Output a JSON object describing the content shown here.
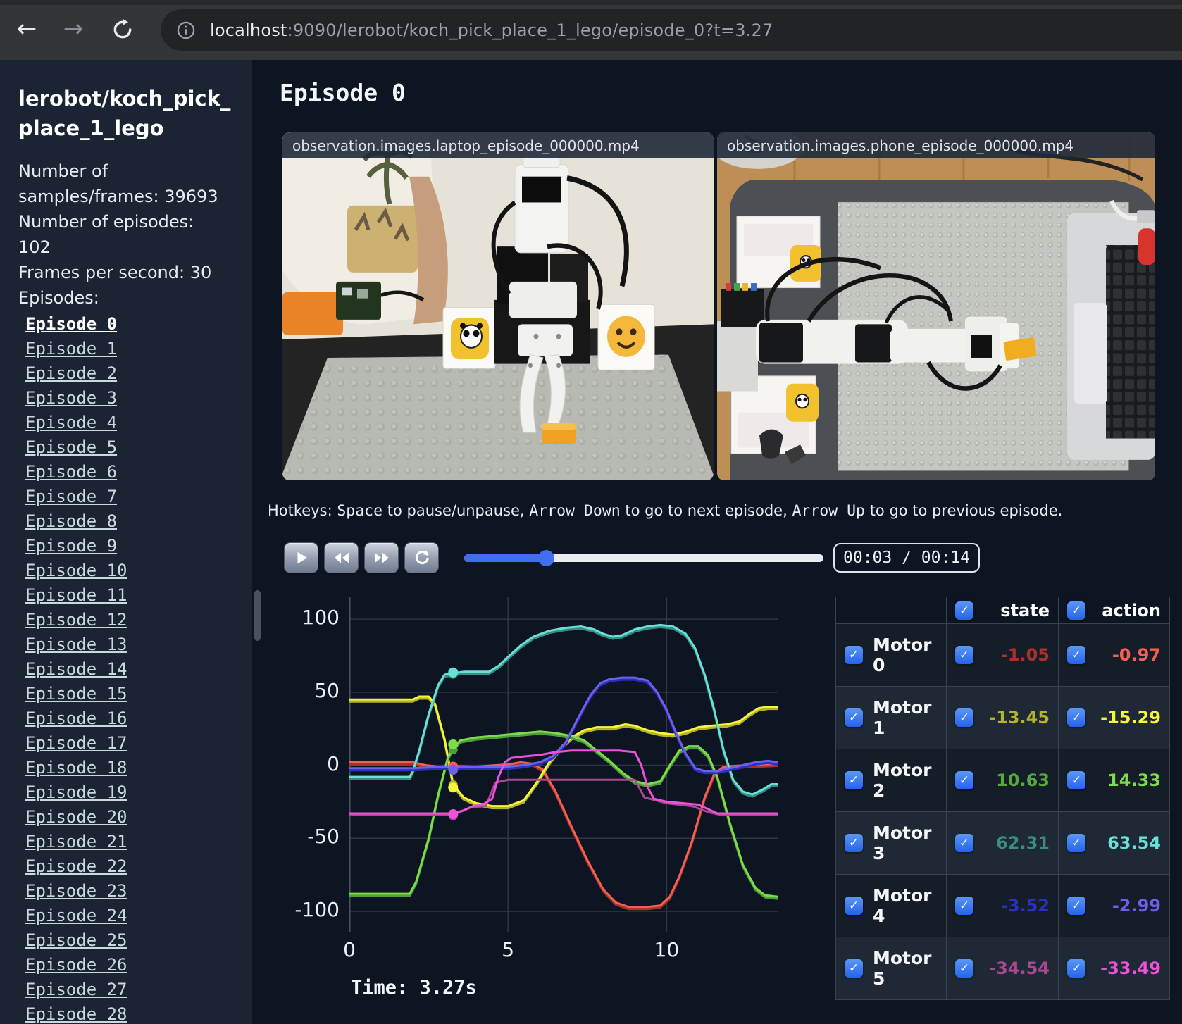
{
  "browser": {
    "back_icon": "←",
    "forward_icon": "→",
    "url_host": "localhost",
    "url_rest": ":9090/lerobot/koch_pick_place_1_lego/episode_0?t=3.27"
  },
  "sidebar": {
    "title": "lerobot/koch_pick_place_1_lego",
    "info_lines": [
      "Number of samples/frames: 39693",
      "Number of episodes: 102",
      "Frames per second: 30"
    ],
    "episodes_label": "Episodes:",
    "active_episode": "Episode 0",
    "episodes": [
      "Episode 0",
      "Episode 1",
      "Episode 2",
      "Episode 3",
      "Episode 4",
      "Episode 5",
      "Episode 6",
      "Episode 7",
      "Episode 8",
      "Episode 9",
      "Episode 10",
      "Episode 11",
      "Episode 12",
      "Episode 13",
      "Episode 14",
      "Episode 15",
      "Episode 16",
      "Episode 17",
      "Episode 18",
      "Episode 19",
      "Episode 20",
      "Episode 21",
      "Episode 22",
      "Episode 23",
      "Episode 24",
      "Episode 25",
      "Episode 26",
      "Episode 27",
      "Episode 28"
    ]
  },
  "main": {
    "heading": "Episode 0",
    "videos": [
      {
        "caption": "observation.images.laptop_episode_000000.mp4"
      },
      {
        "caption": "observation.images.phone_episode_000000.mp4"
      }
    ],
    "hotkeys": {
      "prefix": "Hotkeys: ",
      "key_space": "Space",
      "seg1": " to pause/unpause, ",
      "key_down": "Arrow Down",
      "seg2": " to go to next episode, ",
      "key_up": "Arrow Up",
      "seg3": " to go to previous episode."
    }
  },
  "controls": {
    "buttons": [
      "play",
      "rewind",
      "fast-forward",
      "loop"
    ],
    "slider_percent": 22.7,
    "time_display": "00:03 / 00:14"
  },
  "chart_data": {
    "type": "line",
    "title": "",
    "xlabel": "",
    "ylabel": "",
    "grid": true,
    "legend": "none (colors match motors table)",
    "x_ticks": [
      0,
      5,
      10
    ],
    "y_ticks": [
      100,
      50,
      0,
      -50,
      -100
    ],
    "xlim": [
      0,
      13.5
    ],
    "ylim": [
      -114,
      115
    ],
    "current_time": 3.27,
    "time_label": "Time: 3.27s",
    "series": [
      {
        "name": "Motor 0",
        "state_color": "#a93226",
        "action_color": "#f55f53",
        "state_value": -1.05,
        "action_value": -0.97,
        "points": [
          [
            0,
            2
          ],
          [
            1,
            2
          ],
          [
            2,
            2
          ],
          [
            2.4,
            0
          ],
          [
            2.8,
            -1
          ],
          [
            3.27,
            -0.5
          ],
          [
            4,
            -1
          ],
          [
            4.6,
            0
          ],
          [
            5,
            0.5
          ],
          [
            5.4,
            2
          ],
          [
            5.8,
            1
          ],
          [
            6.1,
            -3
          ],
          [
            6.5,
            -18
          ],
          [
            7,
            -42
          ],
          [
            7.5,
            -65
          ],
          [
            8,
            -85
          ],
          [
            8.4,
            -94
          ],
          [
            8.8,
            -97
          ],
          [
            9.4,
            -97
          ],
          [
            9.8,
            -96
          ],
          [
            10.1,
            -90
          ],
          [
            10.4,
            -76
          ],
          [
            10.8,
            -52
          ],
          [
            11.2,
            -22
          ],
          [
            11.5,
            -6
          ],
          [
            11.8,
            -1
          ],
          [
            12.5,
            0
          ],
          [
            13.5,
            1
          ]
        ]
      },
      {
        "name": "Motor 1",
        "state_color": "#b5b32a",
        "action_color": "#f5f53c",
        "state_value": -13.45,
        "action_value": -15.29,
        "points": [
          [
            0,
            45
          ],
          [
            1,
            45
          ],
          [
            2,
            45
          ],
          [
            2.2,
            47
          ],
          [
            2.5,
            47
          ],
          [
            2.7,
            42
          ],
          [
            3,
            18
          ],
          [
            3.27,
            -13
          ],
          [
            3.6,
            -22
          ],
          [
            4,
            -26
          ],
          [
            4.5,
            -28
          ],
          [
            5,
            -28
          ],
          [
            5.5,
            -24
          ],
          [
            5.9,
            -12
          ],
          [
            6.3,
            2
          ],
          [
            6.7,
            13
          ],
          [
            7,
            19
          ],
          [
            7.4,
            24
          ],
          [
            7.8,
            26
          ],
          [
            8.3,
            26
          ],
          [
            8.7,
            28
          ],
          [
            9,
            27
          ],
          [
            9.4,
            24
          ],
          [
            9.8,
            22
          ],
          [
            10.2,
            21
          ],
          [
            10.6,
            23
          ],
          [
            11,
            26
          ],
          [
            11.4,
            27
          ],
          [
            11.9,
            28
          ],
          [
            12.3,
            30
          ],
          [
            12.6,
            35
          ],
          [
            12.9,
            39
          ],
          [
            13.2,
            40
          ],
          [
            13.5,
            40
          ]
        ]
      },
      {
        "name": "Motor 2",
        "state_color": "#4f9e3c",
        "action_color": "#7ddc49",
        "state_value": 10.63,
        "action_value": 14.33,
        "points": [
          [
            0,
            -88
          ],
          [
            1,
            -88
          ],
          [
            1.9,
            -88
          ],
          [
            2.1,
            -80
          ],
          [
            2.5,
            -50
          ],
          [
            2.8,
            -20
          ],
          [
            3.1,
            5
          ],
          [
            3.27,
            12
          ],
          [
            3.5,
            17
          ],
          [
            4,
            19
          ],
          [
            4.5,
            20
          ],
          [
            5,
            21
          ],
          [
            5.5,
            22
          ],
          [
            6,
            23
          ],
          [
            6.5,
            22
          ],
          [
            7,
            20
          ],
          [
            7.4,
            17
          ],
          [
            7.8,
            10
          ],
          [
            8.2,
            3
          ],
          [
            8.6,
            -5
          ],
          [
            9,
            -11
          ],
          [
            9.4,
            -13
          ],
          [
            9.8,
            -11
          ],
          [
            10.1,
            0
          ],
          [
            10.4,
            10
          ],
          [
            10.7,
            13
          ],
          [
            11,
            13
          ],
          [
            11.3,
            7
          ],
          [
            11.6,
            -8
          ],
          [
            12,
            -40
          ],
          [
            12.4,
            -68
          ],
          [
            12.8,
            -84
          ],
          [
            13.1,
            -89
          ],
          [
            13.5,
            -90
          ]
        ]
      },
      {
        "name": "Motor 3",
        "state_color": "#3a8d84",
        "action_color": "#68e2d9",
        "state_value": 62.31,
        "action_value": 63.54,
        "points": [
          [
            0,
            -8
          ],
          [
            1,
            -8
          ],
          [
            1.9,
            -8
          ],
          [
            2,
            -4
          ],
          [
            2.2,
            10
          ],
          [
            2.5,
            35
          ],
          [
            2.8,
            55
          ],
          [
            3,
            62
          ],
          [
            3.27,
            63
          ],
          [
            3.6,
            64
          ],
          [
            4,
            64
          ],
          [
            4.4,
            64
          ],
          [
            4.7,
            68
          ],
          [
            5,
            74
          ],
          [
            5.4,
            82
          ],
          [
            5.8,
            88
          ],
          [
            6.3,
            92
          ],
          [
            6.8,
            94
          ],
          [
            7.3,
            95
          ],
          [
            7.7,
            93
          ],
          [
            8,
            90
          ],
          [
            8.3,
            88
          ],
          [
            8.6,
            89
          ],
          [
            9,
            93
          ],
          [
            9.4,
            95
          ],
          [
            9.8,
            96
          ],
          [
            10.2,
            95
          ],
          [
            10.6,
            90
          ],
          [
            10.9,
            80
          ],
          [
            11.2,
            62
          ],
          [
            11.5,
            38
          ],
          [
            11.8,
            10
          ],
          [
            12.1,
            -10
          ],
          [
            12.4,
            -18
          ],
          [
            12.7,
            -20
          ],
          [
            13,
            -17
          ],
          [
            13.3,
            -13
          ],
          [
            13.5,
            -13
          ]
        ]
      },
      {
        "name": "Motor 4",
        "state_color": "#2b2fc4",
        "action_color": "#6e60ea",
        "state_value": -3.52,
        "action_value": -2.99,
        "points": [
          [
            0,
            -2
          ],
          [
            1,
            -2
          ],
          [
            2,
            -2
          ],
          [
            3,
            -1
          ],
          [
            3.27,
            -1
          ],
          [
            4,
            -1
          ],
          [
            5,
            -1
          ],
          [
            5.5,
            0
          ],
          [
            6,
            2
          ],
          [
            6.4,
            6
          ],
          [
            6.8,
            15
          ],
          [
            7.2,
            32
          ],
          [
            7.6,
            48
          ],
          [
            7.9,
            56
          ],
          [
            8.2,
            59
          ],
          [
            8.6,
            60
          ],
          [
            9,
            60
          ],
          [
            9.4,
            58
          ],
          [
            9.7,
            50
          ],
          [
            10,
            38
          ],
          [
            10.3,
            22
          ],
          [
            10.6,
            8
          ],
          [
            10.9,
            -2
          ],
          [
            11.2,
            -4
          ],
          [
            11.6,
            -4
          ],
          [
            12,
            -2
          ],
          [
            12.4,
            0
          ],
          [
            12.8,
            2
          ],
          [
            13.2,
            3
          ],
          [
            13.5,
            2
          ]
        ]
      },
      {
        "name": "Motor 5",
        "state_color": "#aa4791",
        "action_color": "#ef52d9",
        "state_value": -34.54,
        "action_value": -33.49,
        "points": [
          [
            0,
            -33
          ],
          [
            1,
            -33
          ],
          [
            2,
            -33
          ],
          [
            3,
            -33
          ],
          [
            3.27,
            -33
          ],
          [
            3.6,
            -31
          ],
          [
            3.9,
            -28
          ],
          [
            4.2,
            -27
          ],
          [
            4.5,
            -23
          ],
          [
            4.7,
            -8
          ],
          [
            4.9,
            2
          ],
          [
            5.1,
            5
          ],
          [
            5.5,
            6
          ],
          [
            6,
            7
          ],
          [
            6.5,
            9
          ],
          [
            7,
            10
          ],
          [
            7.5,
            10
          ],
          [
            8,
            10
          ],
          [
            8.5,
            10
          ],
          [
            9,
            9
          ],
          [
            9.2,
            0
          ],
          [
            9.4,
            -15
          ],
          [
            9.6,
            -23
          ],
          [
            10,
            -25
          ],
          [
            10.5,
            -26
          ],
          [
            11,
            -27
          ],
          [
            11.3,
            -30
          ],
          [
            11.6,
            -33
          ],
          [
            12,
            -33
          ],
          [
            13.5,
            -33
          ]
        ],
        "state_points": [
          [
            0,
            -34
          ],
          [
            2,
            -34
          ],
          [
            3.27,
            -34
          ],
          [
            3.8,
            -29
          ],
          [
            4.3,
            -28
          ],
          [
            4.6,
            -12
          ],
          [
            5,
            -10
          ],
          [
            6,
            -10
          ],
          [
            7,
            -10
          ],
          [
            8,
            -10
          ],
          [
            9,
            -10
          ],
          [
            9.3,
            -22
          ],
          [
            10,
            -26
          ],
          [
            10.8,
            -28
          ],
          [
            11.3,
            -32
          ],
          [
            11.7,
            -34
          ],
          [
            13.5,
            -34
          ]
        ]
      }
    ]
  },
  "table": {
    "state_header": "state",
    "action_header": "action",
    "rows": [
      {
        "label": "Motor 0",
        "state": "-1.05",
        "action": "-0.97",
        "state_color": "#a93226",
        "action_color": "#f55f53"
      },
      {
        "label": "Motor 1",
        "state": "-13.45",
        "action": "-15.29",
        "state_color": "#b5b32a",
        "action_color": "#f5f53c"
      },
      {
        "label": "Motor 2",
        "state": "10.63",
        "action": "14.33",
        "state_color": "#57a83f",
        "action_color": "#7ddc49"
      },
      {
        "label": "Motor 3",
        "state": "62.31",
        "action": "63.54",
        "state_color": "#3a8d84",
        "action_color": "#68e2d9"
      },
      {
        "label": "Motor 4",
        "state": "-3.52",
        "action": "-2.99",
        "state_color": "#2b2fc4",
        "action_color": "#6e60ea"
      },
      {
        "label": "Motor 5",
        "state": "-34.54",
        "action": "-33.49",
        "state_color": "#aa4791",
        "action_color": "#ef52d9"
      }
    ]
  }
}
